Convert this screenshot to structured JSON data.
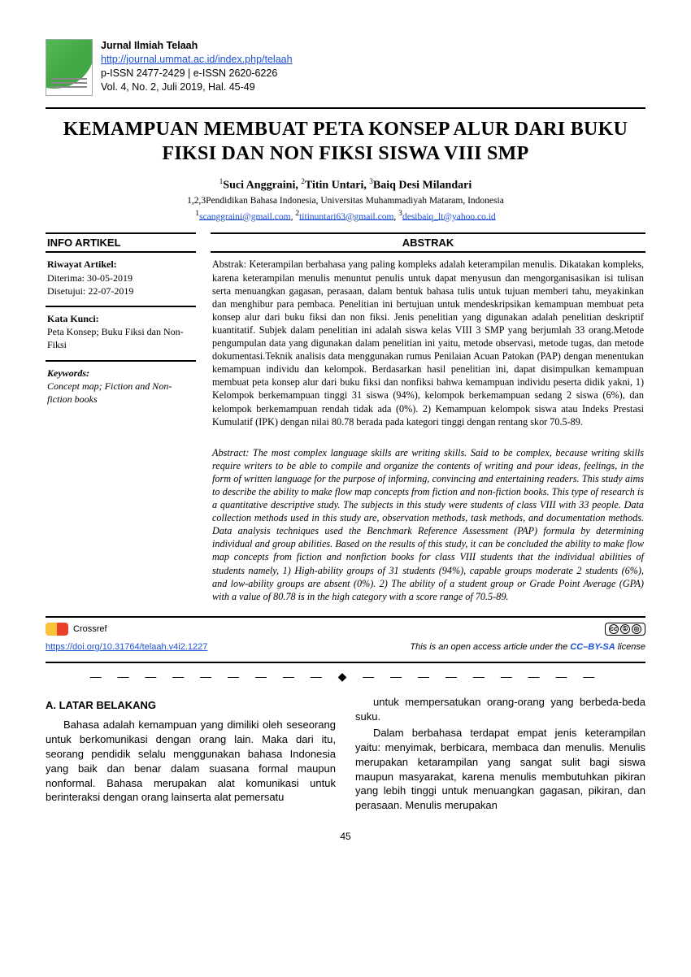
{
  "journal": {
    "name": "Jurnal Ilmiah Telaah",
    "url": "http://journal.ummat.ac.id/index.php/telaah",
    "issn_line": "p-ISSN 2477-2429  |  e-ISSN 2620-6226",
    "vol_line": "Vol. 4, No. 2, Juli 2019, Hal. 45-49"
  },
  "title": "KEMAMPUAN MEMBUAT PETA KONSEP ALUR DARI BUKU FIKSI DAN NON FIKSI SISWA VIII  SMP",
  "authors": {
    "a1_sup": "1",
    "a1": "Suci Anggraini, ",
    "a2_sup": "2",
    "a2": "Titin Untari, ",
    "a3_sup": "3",
    "a3": "Baiq Desi Milandari"
  },
  "affiliation": "1,2,3Pendidikan Bahasa Indonesia, Universitas Muhammadiyah Mataram, Indonesia",
  "emails": {
    "e1_sup": "1",
    "e1": "scanggraini@gmail.com",
    "e2_sup": "2",
    "e2": "titinuntari63@gmail.com",
    "e3_sup": "3",
    "e3": "desibaiq_lt@yahoo.co.id",
    "sep": ", "
  },
  "info_head": "INFO ARTIKEL",
  "abstrak_head": "ABSTRAK",
  "riwayat": {
    "label": "Riwayat Artikel:",
    "diterima": "Diterima: 30-05-2019",
    "disetujui": "Disetujui: 22-07-2019"
  },
  "kata_kunci": {
    "label": "Kata Kunci:",
    "text": "Peta Konsep; Buku Fiksi dan Non-Fiksi"
  },
  "keywords": {
    "label": "Keywords:",
    "text": "Concept map; Fiction and Non-fiction books"
  },
  "abstrak_id": "Abstrak: Keterampilan berbahasa yang paling kompleks adalah keterampilan menulis. Dikatakan kompleks, karena keterampilan menulis menuntut penulis untuk dapat menyusun dan mengorganisasikan isi tulisan serta menuangkan gagasan, perasaan, dalam bentuk bahasa tulis untuk tujuan memberi tahu, meyakinkan dan menghibur para pembaca. Penelitian ini bertujuan untuk mendeskripsikan kemampuan membuat peta konsep alur dari buku fiksi dan non fiksi. Jenis penelitian yang digunakan adalah penelitian deskriptif kuantitatif. Subjek dalam penelitian ini adalah siswa kelas VIII 3 SMP yang berjumlah 33 orang.Metode pengumpulan data yang digunakan dalam penelitian ini yaitu, metode observasi, metode tugas, dan metode dokumentasi.Teknik analisis data menggunakan rumus Penilaian Acuan Patokan (PAP) dengan menentukan kemampuan individu dan kelompok. Berdasarkan hasil penelitian ini, dapat disimpulkan kemampuan membuat peta konsep alur dari buku fiksi dan nonfiksi bahwa kemampuan individu peserta didik yakni, 1) Kelompok berkemampuan tinggi 31 siswa (94%), kelompok berkemampuan sedang 2 siswa (6%), dan kelompok berkemampuan rendah tidak ada (0%). 2) Kemampuan kelompok siswa atau Indeks Prestasi Kumulatif (IPK) dengan nilai 80.78 berada pada kategori tinggi dengan rentang skor 70.5-89.",
  "abstrak_en": "Abstract: The most complex language skills are writing skills. Said to be complex, because writing skills require writers to be able to compile and organize the contents of writing and pour ideas, feelings, in the form of written language for the purpose of informing, convincing and entertaining readers. This study aims to describe the ability to make flow map concepts from fiction and non-fiction books. This type of research is a quantitative descriptive study. The subjects in this study were students of class VIII with 33 people. Data collection methods used in this study are, observation methods, task methods, and documentation methods. Data analysis techniques used the Benchmark Reference Assessment (PAP) formula by determining individual and group abilities. Based on the results of this study, it can be concluded the ability to make flow map concepts from fiction and nonfiction books for class VIII students that the individual abilities of students namely, 1) High-ability groups of 31 students (94%), capable groups moderate 2 students (6%), and low-ability groups are absent (0%). 2) The ability of a student group or Grade Point Average (GPA) with a value of 80.78 is in the high category with a score range of 70.5-89.",
  "crossref_label": "Crossref",
  "doi": "https://doi.org/10.31764/telaah.v4i2.1227",
  "license_text": "This is an open access article under the ",
  "license_name": "CC–BY-SA",
  "license_suffix": " license",
  "divider": "— — — — — — — — — ◆ — — — — — — — — —",
  "section_a": "A.  LATAR BELAKANG",
  "para1": "Bahasa adalah kemampuan yang dimiliki oleh seseorang untuk berkomunikasi dengan orang lain. Maka dari itu, seorang pendidik selalu menggunakan bahasa Indonesia yang baik dan benar dalam suasana formal maupun nonformal. Bahasa merupakan alat komunikasi untuk berinteraksi dengan orang lainserta alat pemersatu",
  "para2": "untuk mempersatukan orang-orang yang berbeda-beda suku.",
  "para3": "Dalam berbahasa terdapat empat jenis keterampilan yaitu: menyimak, berbicara, membaca dan menulis. Menulis merupakan ketarampilan yang sangat sulit bagi siswa maupun masyarakat, karena menulis membutuhkan pikiran yang lebih tinggi untuk menuangkan gagasan, pikiran, dan perasaan. Menulis merupakan",
  "page_number": "45"
}
